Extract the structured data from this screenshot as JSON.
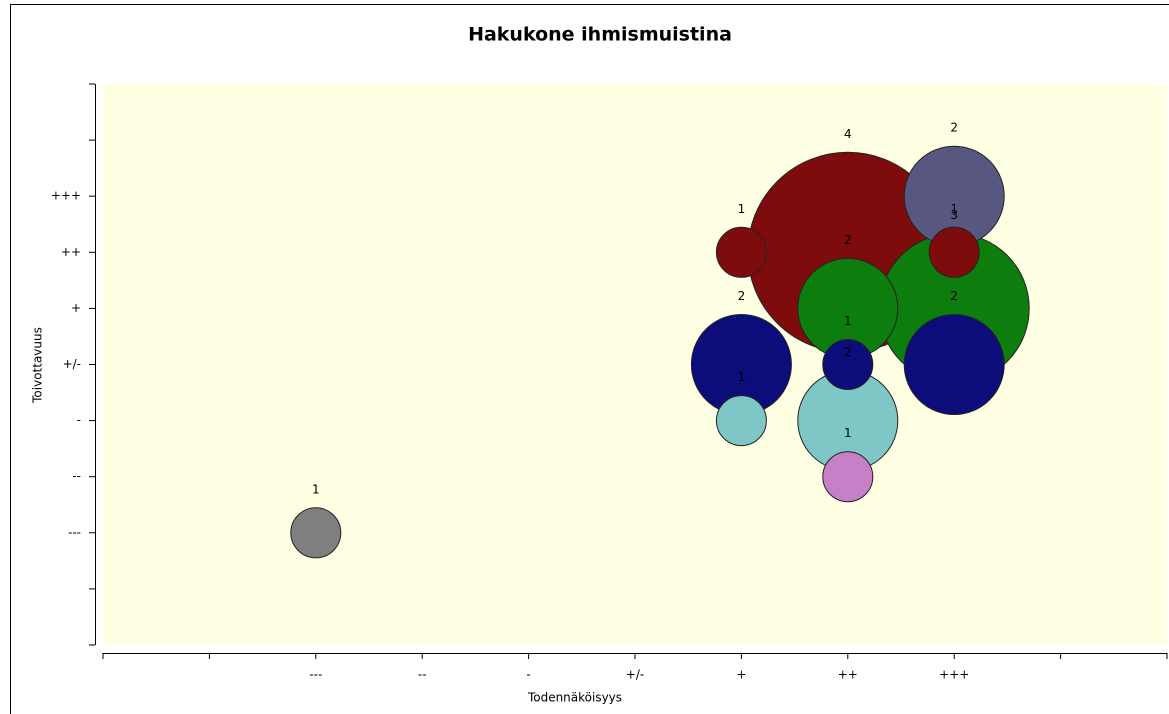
{
  "chart_data": {
    "type": "bubble",
    "title": "Hakukone ihmismuistina",
    "x_label": "Todennäköisyys",
    "y_label": "Toivottavuus",
    "xlim": [
      -5,
      5
    ],
    "ylim": [
      -5,
      5
    ],
    "xticks": [
      {
        "value": -3,
        "label": "---"
      },
      {
        "value": -2,
        "label": "--"
      },
      {
        "value": -1,
        "label": "-"
      },
      {
        "value": 0,
        "label": "+/-"
      },
      {
        "value": 1,
        "label": "+"
      },
      {
        "value": 2,
        "label": "++"
      },
      {
        "value": 3,
        "label": "+++"
      }
    ],
    "xminor_ticks": [
      -5,
      -4,
      4,
      5
    ],
    "yticks": [
      {
        "value": -3,
        "label": "---"
      },
      {
        "value": -2,
        "label": "--"
      },
      {
        "value": -1,
        "label": "-"
      },
      {
        "value": 0,
        "label": "+/-"
      },
      {
        "value": 1,
        "label": "+"
      },
      {
        "value": 2,
        "label": "++"
      },
      {
        "value": 3,
        "label": "+++"
      }
    ],
    "yminor_ticks": [
      -5,
      -4,
      4,
      5
    ],
    "background": "#ffffe3",
    "x": [
      2,
      3,
      3,
      1,
      3,
      2,
      2,
      3,
      1,
      1,
      2,
      2,
      -3
    ],
    "y": [
      2,
      1,
      3,
      0,
      0,
      1,
      -1,
      2,
      2,
      -1,
      0,
      -2,
      -3
    ],
    "sizes": [
      4,
      3,
      2,
      2,
      2,
      2,
      2,
      1,
      1,
      1,
      1,
      1,
      1
    ],
    "colors": [
      "#7f0c0c",
      "#0d7d0d",
      "#57577f",
      "#0c0c7a",
      "#0c0c7a",
      "#0d7d0d",
      "#7fc7c7",
      "#7f0c0c",
      "#7f0c0c",
      "#7fc7c7",
      "#0c0c7a",
      "#c77fc7",
      "#7f7f7f"
    ]
  }
}
